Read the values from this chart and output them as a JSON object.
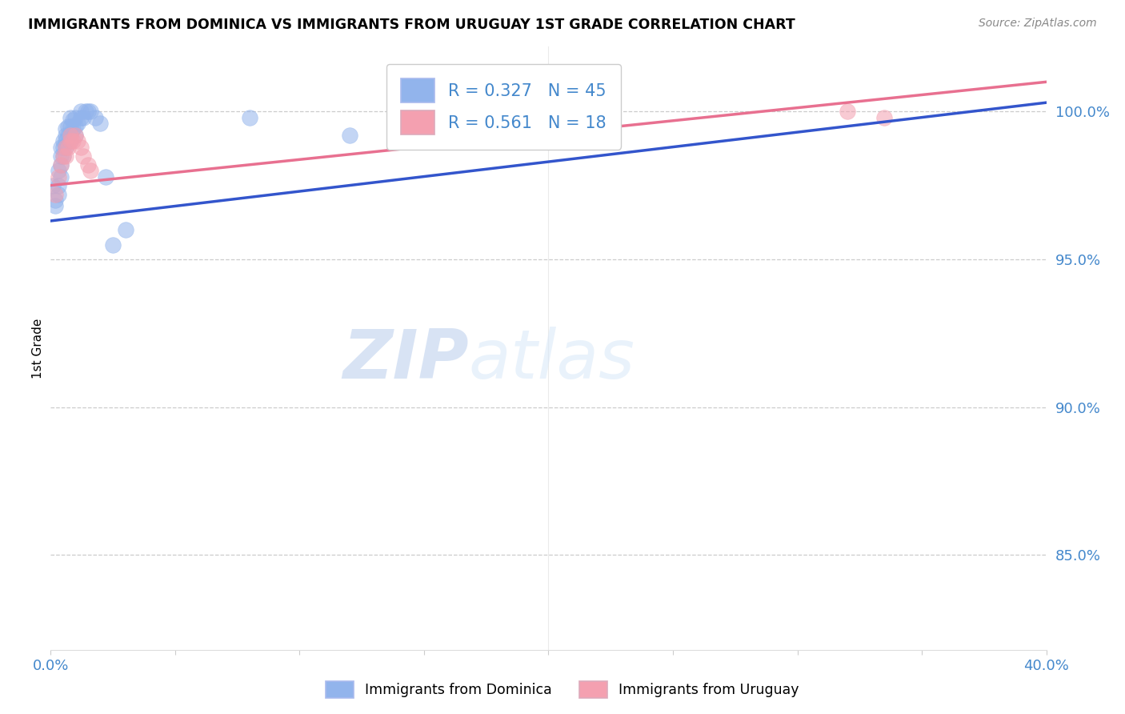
{
  "title": "IMMIGRANTS FROM DOMINICA VS IMMIGRANTS FROM URUGUAY 1ST GRADE CORRELATION CHART",
  "source": "Source: ZipAtlas.com",
  "ylabel": "1st Grade",
  "yaxis_labels": [
    "100.0%",
    "95.0%",
    "90.0%",
    "85.0%"
  ],
  "yaxis_values": [
    1.0,
    0.95,
    0.9,
    0.85
  ],
  "xlim": [
    0.0,
    0.4
  ],
  "ylim": [
    0.818,
    1.022
  ],
  "legend1_label": "R = 0.327   N = 45",
  "legend2_label": "R = 0.561   N = 18",
  "dominica_color": "#92b4ec",
  "uruguay_color": "#f4a0b0",
  "dominica_line_color": "#3355cc",
  "uruguay_line_color": "#e87090",
  "watermark_zip": "ZIP",
  "watermark_atlas": "atlas",
  "dominica_x": [
    0.001,
    0.002,
    0.002,
    0.003,
    0.003,
    0.003,
    0.004,
    0.004,
    0.004,
    0.004,
    0.005,
    0.005,
    0.005,
    0.006,
    0.006,
    0.006,
    0.006,
    0.007,
    0.007,
    0.008,
    0.008,
    0.008,
    0.008,
    0.009,
    0.009,
    0.01,
    0.01,
    0.01,
    0.011,
    0.012,
    0.012,
    0.013,
    0.014,
    0.015,
    0.016,
    0.018,
    0.02,
    0.022,
    0.025,
    0.03,
    0.08,
    0.12,
    0.16,
    0.2,
    0.22
  ],
  "dominica_y": [
    0.975,
    0.97,
    0.968,
    0.972,
    0.975,
    0.98,
    0.978,
    0.982,
    0.985,
    0.988,
    0.985,
    0.988,
    0.99,
    0.988,
    0.99,
    0.992,
    0.994,
    0.992,
    0.995,
    0.99,
    0.992,
    0.995,
    0.998,
    0.994,
    0.997,
    0.992,
    0.995,
    0.998,
    0.996,
    0.998,
    1.0,
    0.998,
    1.0,
    1.0,
    1.0,
    0.998,
    0.996,
    0.978,
    0.955,
    0.96,
    0.998,
    0.992,
    0.995,
    1.0,
    0.998
  ],
  "uruguay_x": [
    0.002,
    0.003,
    0.004,
    0.005,
    0.006,
    0.006,
    0.007,
    0.008,
    0.008,
    0.009,
    0.01,
    0.011,
    0.012,
    0.013,
    0.015,
    0.016,
    0.32,
    0.335
  ],
  "uruguay_y": [
    0.972,
    0.978,
    0.982,
    0.985,
    0.985,
    0.988,
    0.988,
    0.99,
    0.992,
    0.99,
    0.992,
    0.99,
    0.988,
    0.985,
    0.982,
    0.98,
    1.0,
    0.998
  ],
  "dominica_trendline_x": [
    0.0,
    0.4
  ],
  "dominica_trendline_y": [
    0.963,
    1.003
  ],
  "uruguay_trendline_x": [
    0.0,
    0.4
  ],
  "uruguay_trendline_y": [
    0.975,
    1.01
  ]
}
